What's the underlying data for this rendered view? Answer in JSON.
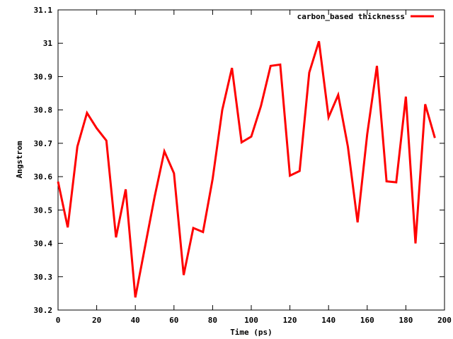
{
  "chart_data": {
    "type": "line",
    "title": "",
    "xlabel": "Time (ps)",
    "ylabel": "Angstrom",
    "xlim": [
      0,
      200
    ],
    "ylim": [
      30.2,
      31.1
    ],
    "xticks": [
      0,
      20,
      40,
      60,
      80,
      100,
      120,
      140,
      160,
      180,
      200
    ],
    "yticks": [
      "30.2",
      "30.3",
      "30.4",
      "30.5",
      "30.6",
      "30.7",
      "30.8",
      "30.9",
      "31",
      "31.1"
    ],
    "grid": false,
    "legend_position": "top-right",
    "series": [
      {
        "name": "carbon_based thicknesss",
        "color": "#ff0000",
        "x": [
          0,
          5,
          10,
          15,
          20,
          25,
          30,
          35,
          40,
          45,
          50,
          55,
          60,
          65,
          70,
          75,
          80,
          85,
          90,
          95,
          100,
          105,
          110,
          115,
          120,
          125,
          130,
          135,
          140,
          145,
          150,
          155,
          160,
          165,
          170,
          175,
          180,
          185,
          190,
          195
        ],
        "y": [
          30.585,
          30.448,
          30.69,
          30.791,
          30.745,
          30.708,
          30.418,
          30.562,
          30.238,
          30.39,
          30.54,
          30.676,
          30.61,
          30.305,
          30.446,
          30.434,
          30.593,
          30.8,
          30.926,
          30.703,
          30.72,
          30.812,
          30.932,
          30.936,
          30.603,
          30.617,
          30.912,
          31.006,
          30.778,
          30.845,
          30.69,
          30.463,
          30.727,
          30.932,
          30.586,
          30.583,
          30.84,
          30.4,
          30.817,
          30.716
        ]
      }
    ]
  }
}
